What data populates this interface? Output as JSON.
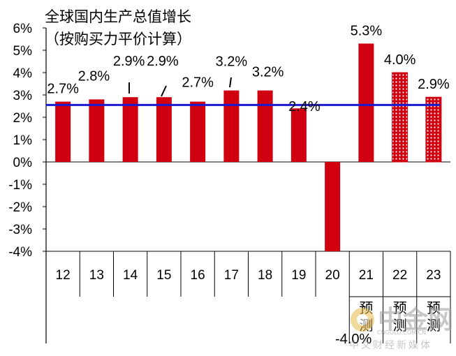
{
  "title_line1": "全球国内生产总值增长",
  "title_line2": "（按购买力平价计算）",
  "chart_data": {
    "type": "bar",
    "categories": [
      "12",
      "13",
      "14",
      "15",
      "16",
      "17",
      "18",
      "19",
      "20",
      "21",
      "22",
      "23"
    ],
    "values": [
      2.7,
      2.8,
      2.9,
      2.9,
      2.7,
      3.2,
      3.2,
      2.4,
      -4.0,
      5.3,
      4.0,
      2.9
    ],
    "data_labels": [
      "2.7%",
      "2.8%",
      "2.9%",
      "2.9%",
      "2.7%",
      "3.2%",
      "3.2%",
      "2.4%",
      "-4.0%",
      "5.3%",
      "4.0%",
      "2.9%"
    ],
    "forecast_flags": [
      false,
      false,
      false,
      false,
      false,
      false,
      false,
      false,
      false,
      true,
      true,
      true
    ],
    "forecast_label": "预测",
    "pattern_fill": [
      false,
      false,
      false,
      false,
      false,
      false,
      false,
      false,
      false,
      false,
      true,
      true
    ],
    "reference_line": 2.55,
    "ylim": [
      -4,
      6
    ],
    "yticks": [
      "6%",
      "5%",
      "4%",
      "3%",
      "2%",
      "1%",
      "0%",
      "-1%",
      "-2%",
      "-3%",
      "-4%"
    ],
    "ytick_values": [
      6,
      5,
      4,
      3,
      2,
      1,
      0,
      -1,
      -2,
      -3,
      -4
    ],
    "xlabel": "",
    "ylabel": "",
    "grid": false,
    "colors": {
      "bar": "#d10010",
      "reference_line": "#1a1ad0",
      "axis": "#000000"
    }
  },
  "watermark": {
    "brand": "中金网",
    "url": "CNGOLD.COM.CN",
    "tagline": "中文财经新媒体"
  }
}
